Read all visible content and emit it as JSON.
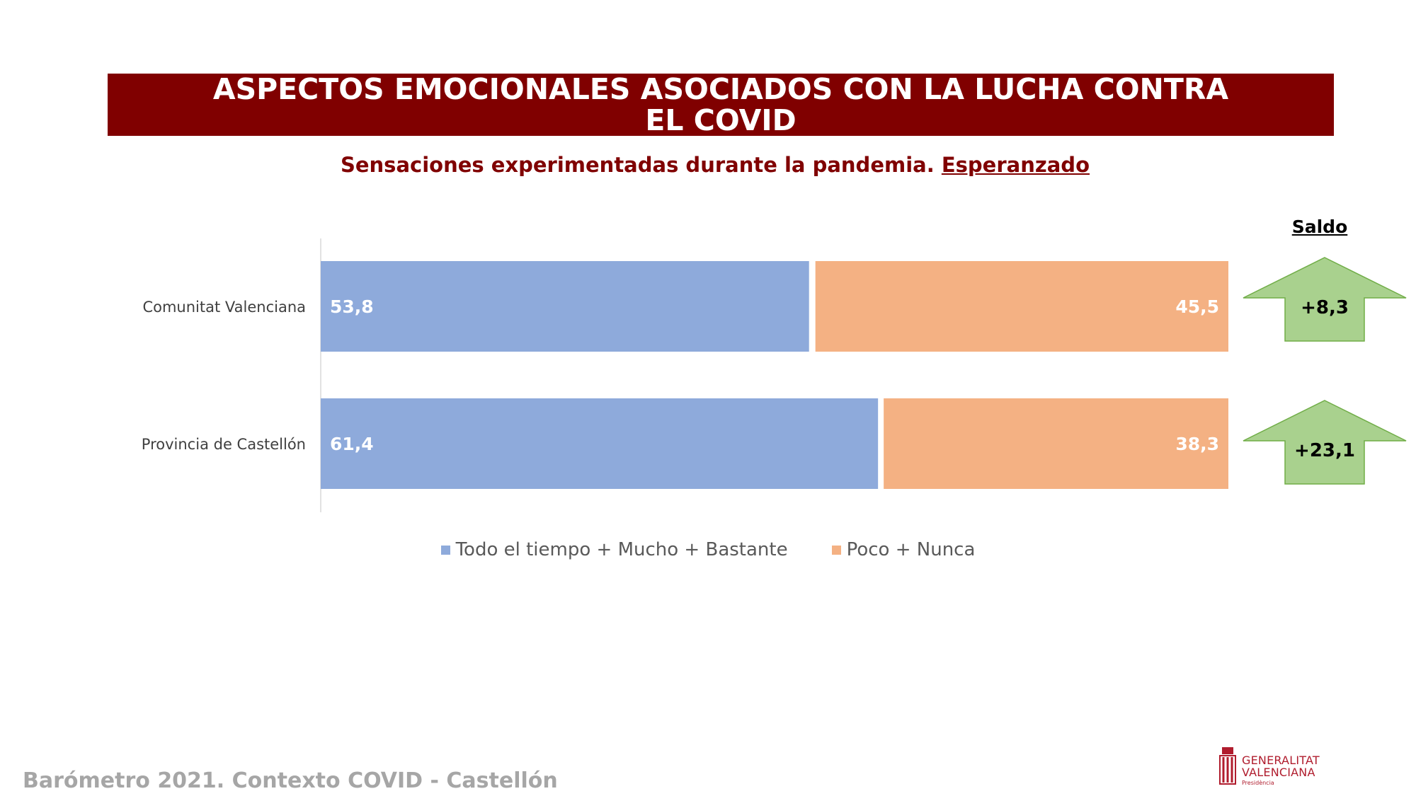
{
  "title": "ASPECTOS EMOCIONALES ASOCIADOS CON LA LUCHA CONTRA EL COVID",
  "subtitle": {
    "prefix": "Sensaciones experimentadas durante la pandemia.",
    "emphasis": "Esperanzado"
  },
  "saldo_header": "Saldo",
  "colors": {
    "title_band": "#800000",
    "series_positive": "#8eaadb",
    "series_negative": "#f4b183",
    "arrow": "#a9d18e"
  },
  "chart_data": {
    "type": "bar",
    "orientation": "horizontal",
    "stacked": true,
    "categories": [
      "Comunitat Valenciana",
      "Provincia de Castellón"
    ],
    "series": [
      {
        "name": "Todo el tiempo + Mucho + Bastante",
        "values": [
          53.8,
          61.4
        ],
        "labels": [
          "53,8",
          "61,4"
        ]
      },
      {
        "name": "Poco + Nunca",
        "values": [
          45.5,
          38.3
        ],
        "labels": [
          "45,5",
          "38,3"
        ]
      }
    ],
    "xlim": [
      0,
      100
    ],
    "legend": "bottom",
    "grid": false
  },
  "saldo": [
    "+8,3",
    "+23,1"
  ],
  "saldo_icon": "arrow-up-icon",
  "footer": "Barómetro 2021. Contexto COVID - Castellón",
  "logo": {
    "line1": "GENERALITAT",
    "line2": "VALENCIANA",
    "sub": "Presidència"
  }
}
